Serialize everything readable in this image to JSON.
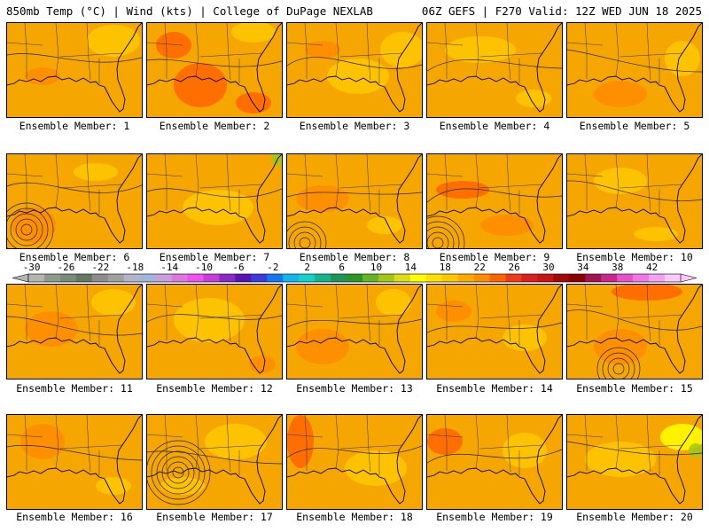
{
  "header": {
    "title_left": "850mb Temp (°C) | Wind (kts) | College of DuPage NEXLAB",
    "title_right": "06Z GEFS | F270 Valid: 12Z WED JUN 18 2025"
  },
  "members": [
    {
      "label": "Ensemble Member: 1"
    },
    {
      "label": "Ensemble Member: 2"
    },
    {
      "label": "Ensemble Member: 3"
    },
    {
      "label": "Ensemble Member: 4"
    },
    {
      "label": "Ensemble Member: 5"
    },
    {
      "label": "Ensemble Member: 6"
    },
    {
      "label": "Ensemble Member: 7"
    },
    {
      "label": "Ensemble Member: 8"
    },
    {
      "label": "Ensemble Member: 9"
    },
    {
      "label": "Ensemble Member: 10"
    },
    {
      "label": "Ensemble Member: 11"
    },
    {
      "label": "Ensemble Member: 12"
    },
    {
      "label": "Ensemble Member: 13"
    },
    {
      "label": "Ensemble Member: 14"
    },
    {
      "label": "Ensemble Member: 15"
    },
    {
      "label": "Ensemble Member: 16"
    },
    {
      "label": "Ensemble Member: 17"
    },
    {
      "label": "Ensemble Member: 18"
    },
    {
      "label": "Ensemble Member: 19"
    },
    {
      "label": "Ensemble Member: 20"
    }
  ],
  "colorbar": {
    "ticks": [
      "-30",
      "-26",
      "-22",
      "-18",
      "-14",
      "-10",
      "-6",
      "-2",
      "2",
      "6",
      "10",
      "14",
      "18",
      "22",
      "26",
      "30",
      "34",
      "38",
      "42"
    ],
    "colors": [
      "#b4b4b4",
      "#8c9c8c",
      "#788c78",
      "#647864",
      "#8c8c8c",
      "#a0a0a0",
      "#b4b4c8",
      "#a0b4dc",
      "#c8a0dc",
      "#dc78dc",
      "#f050f0",
      "#c83cdc",
      "#8c28c8",
      "#5a14b4",
      "#3c3cdc",
      "#1478f0",
      "#14b4f0",
      "#14d2c8",
      "#14b48c",
      "#1e965a",
      "#289628",
      "#64b428",
      "#a0c814",
      "#dcdc14",
      "#ffff00",
      "#ffe100",
      "#ffc800",
      "#ffaa00",
      "#ff8c00",
      "#ff6400",
      "#f03c14",
      "#dc1e1e",
      "#c81414",
      "#a00a0a",
      "#8c0000",
      "#a01450",
      "#c8288c",
      "#e650c8",
      "#f078e6",
      "#f5a0f0",
      "#fac8fa"
    ]
  }
}
